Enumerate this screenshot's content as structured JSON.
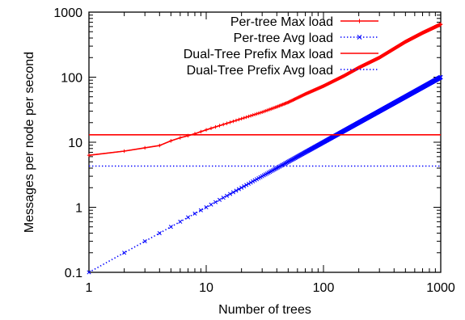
{
  "chart_data": {
    "type": "line",
    "title": "",
    "xlabel": "Number of trees",
    "ylabel": "Messages per node per second",
    "x_scale": "log",
    "y_scale": "log",
    "xlim": [
      1,
      1000
    ],
    "ylim": [
      0.1,
      1000
    ],
    "x_ticks": [
      1,
      10,
      100,
      1000
    ],
    "x_tick_labels": [
      "1",
      "10",
      "100",
      "1000"
    ],
    "y_ticks": [
      0.1,
      1,
      10,
      100,
      1000
    ],
    "y_tick_labels": [
      "0.1",
      "1",
      "10",
      "100",
      "1000"
    ],
    "grid": false,
    "legend_position": "top-right",
    "series": [
      {
        "name": "Per-tree Max load",
        "color": "#ff0000",
        "line_style": "solid",
        "marker": "plus",
        "x": [
          1,
          2,
          3,
          4,
          5,
          6,
          7,
          8,
          10,
          15,
          20,
          30,
          40,
          50,
          70,
          100,
          150,
          200,
          300,
          500,
          700,
          1000
        ],
        "y": [
          6.3,
          7.3,
          8.2,
          8.9,
          10.5,
          11.7,
          12.6,
          13.5,
          15.5,
          19.5,
          23,
          29,
          35,
          41,
          55,
          73,
          105,
          140,
          200,
          350,
          480,
          650
        ]
      },
      {
        "name": "Per-tree Avg load",
        "color": "#0000ff",
        "line_style": "dotted",
        "marker": "x",
        "x": [
          1,
          2,
          3,
          5,
          7,
          10,
          20,
          50,
          100,
          200,
          500,
          1000
        ],
        "y": [
          0.1,
          0.2,
          0.3,
          0.5,
          0.7,
          1.0,
          2.0,
          5.0,
          10,
          20,
          50,
          100
        ]
      },
      {
        "name": "Dual-Tree Prefix Max load",
        "color": "#ff0000",
        "line_style": "solid",
        "marker": "none",
        "x": [
          1,
          1000
        ],
        "y": [
          13,
          13
        ]
      },
      {
        "name": "Dual-Tree Prefix Avg load",
        "color": "#0000ff",
        "line_style": "dotted",
        "marker": "none",
        "x": [
          1,
          1000
        ],
        "y": [
          4.3,
          4.3
        ]
      }
    ]
  }
}
